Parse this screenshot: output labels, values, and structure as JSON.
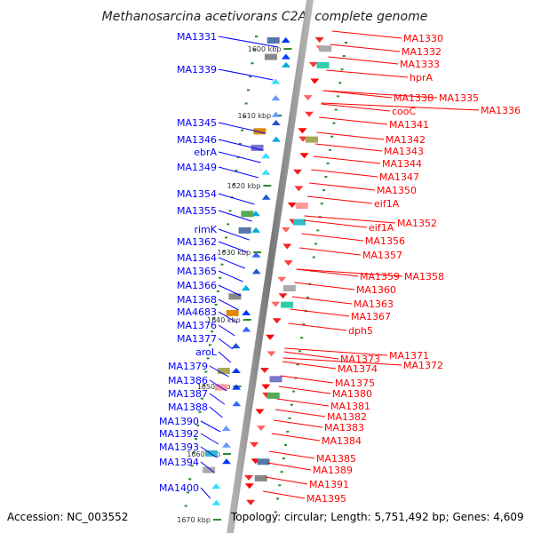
{
  "title": "Methanosarcina acetivorans C2A, complete genome",
  "accession": "Accession: NC_003552",
  "topology": "Topology: circular; Length: 5,751,492 bp; Genes: 4,609",
  "colors": {
    "left": "#0000ff",
    "right": "#ff0000",
    "backbone": "#999999",
    "tick": "#2a8a2a"
  },
  "kbp_marks": [
    "1600 kbp",
    "1610 kbp",
    "1620 kbp",
    "1630 kbp",
    "1640 kbp",
    "1650 kbp",
    "1660 kbp",
    "1670 kbp"
  ],
  "left_labels": [
    "MA1331",
    "MA1339",
    "MA1345",
    "MA1346",
    "ebrA",
    "MA1349",
    "MA1354",
    "MA1355",
    "rimK",
    "MA1362",
    "MA1364",
    "MA1365",
    "MA1366",
    "MA1368",
    "MA4683",
    "MA1376",
    "MA1377",
    "aroL",
    "MA1379",
    "MA1386",
    "MA1387",
    "MA1388",
    "MA1390",
    "MA1392",
    "MA1393",
    "MA1394",
    "MA1400"
  ],
  "right_labels": [
    "MA1330",
    "MA1332",
    "MA1333",
    "hprA",
    "MA1338",
    "MA1335",
    "MA1336",
    "cooC",
    "MA1341",
    "MA1342",
    "MA1343",
    "MA1344",
    "MA1347",
    "MA1350",
    "eif1A",
    "MA1352",
    "eif1A",
    "MA1356",
    "MA1357",
    "MA1359",
    "MA1358",
    "MA1360",
    "MA1363",
    "MA1367",
    "dph5",
    "MA1371",
    "MA1373",
    "MA1372",
    "MA1374",
    "MA1375",
    "MA1380",
    "MA1381",
    "MA1382",
    "MA1383",
    "MA1384",
    "MA1385",
    "MA1389",
    "MA1391",
    "MA1395"
  ]
}
